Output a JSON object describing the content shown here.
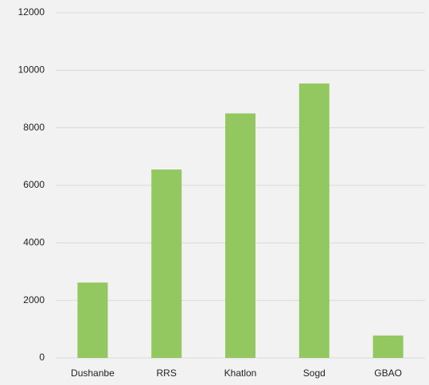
{
  "chart_data": {
    "type": "bar",
    "categories": [
      "Dushanbe",
      "RRS",
      "Khatlon",
      "Sogd",
      "GBAO"
    ],
    "values": [
      2620,
      6550,
      8500,
      9540,
      780
    ],
    "color": "#92c85f",
    "ylim": [
      0,
      12000
    ],
    "yticks": [
      0,
      2000,
      4000,
      6000,
      8000,
      10000,
      12000
    ],
    "grid": true
  }
}
